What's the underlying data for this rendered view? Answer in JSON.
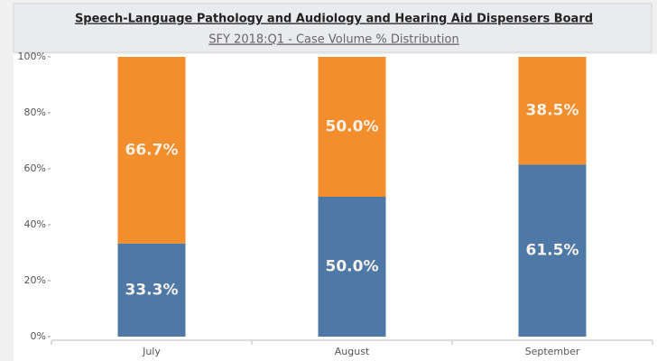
{
  "chart_data": {
    "type": "stacked_bar",
    "title": "Speech-Language Pathology and Audiology and Hearing Aid Dispensers Board",
    "subtitle": "SFY 2018:Q1  -  Case Volume % Distribution",
    "categories": [
      "July",
      "August",
      "September"
    ],
    "series": [
      {
        "color": "#4e79a7",
        "values": [
          33.3,
          50.0,
          61.5
        ],
        "value_labels": [
          "33.3%",
          "50.0%",
          "61.5%"
        ]
      },
      {
        "color": "#f28e2b",
        "values": [
          66.7,
          50.0,
          38.5
        ],
        "value_labels": [
          "66.7%",
          "50.0%",
          "38.5%"
        ]
      }
    ],
    "ylim": [
      0,
      100
    ],
    "yticks": [
      {
        "value": 0,
        "label": "0%"
      },
      {
        "value": 20,
        "label": "20%"
      },
      {
        "value": 40,
        "label": "40%"
      },
      {
        "value": 60,
        "label": "60%"
      },
      {
        "value": 80,
        "label": "80%"
      },
      {
        "value": 100,
        "label": "100%"
      }
    ]
  }
}
